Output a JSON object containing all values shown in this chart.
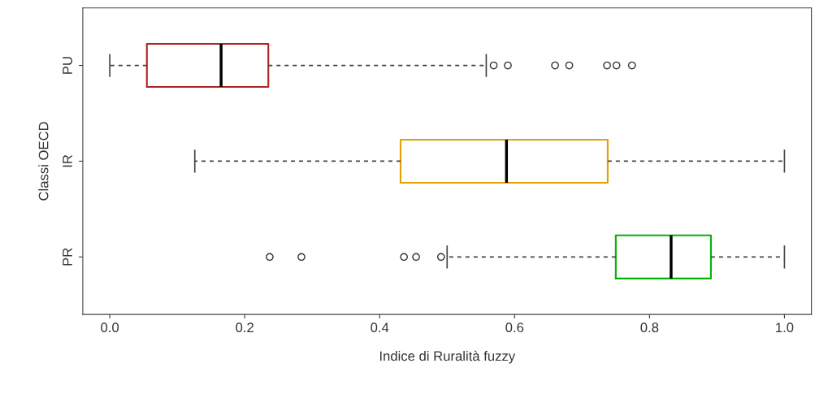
{
  "chart_data": {
    "type": "box",
    "orientation": "horizontal",
    "xlabel": "Indice di Ruralità fuzzy",
    "ylabel": "Classi OECD",
    "categories": [
      "PU",
      "IR",
      "PR"
    ],
    "colors": [
      "#b22222",
      "#e69f00",
      "#00b400"
    ],
    "boxes": [
      {
        "low": 0.0,
        "q1": 0.055,
        "median": 0.165,
        "q3": 0.235,
        "high": 0.558,
        "outliers": [
          0.569,
          0.59,
          0.66,
          0.681,
          0.737,
          0.751,
          0.774
        ]
      },
      {
        "low": 0.126,
        "q1": 0.431,
        "median": 0.588,
        "q3": 0.738,
        "high": 1.0
      },
      {
        "low": 0.5,
        "q1": 0.75,
        "median": 0.832,
        "q3": 0.891,
        "high": 1.0,
        "outliers": [
          0.237,
          0.284,
          0.436,
          0.454,
          0.491
        ]
      }
    ],
    "xlim": [
      -0.04,
      1.04
    ],
    "xticks": [
      {
        "value": 0,
        "label": "0.0"
      },
      0.2,
      0.4,
      0.6,
      0.8,
      {
        "value": 1,
        "label": "1.0"
      }
    ],
    "grid": false
  }
}
